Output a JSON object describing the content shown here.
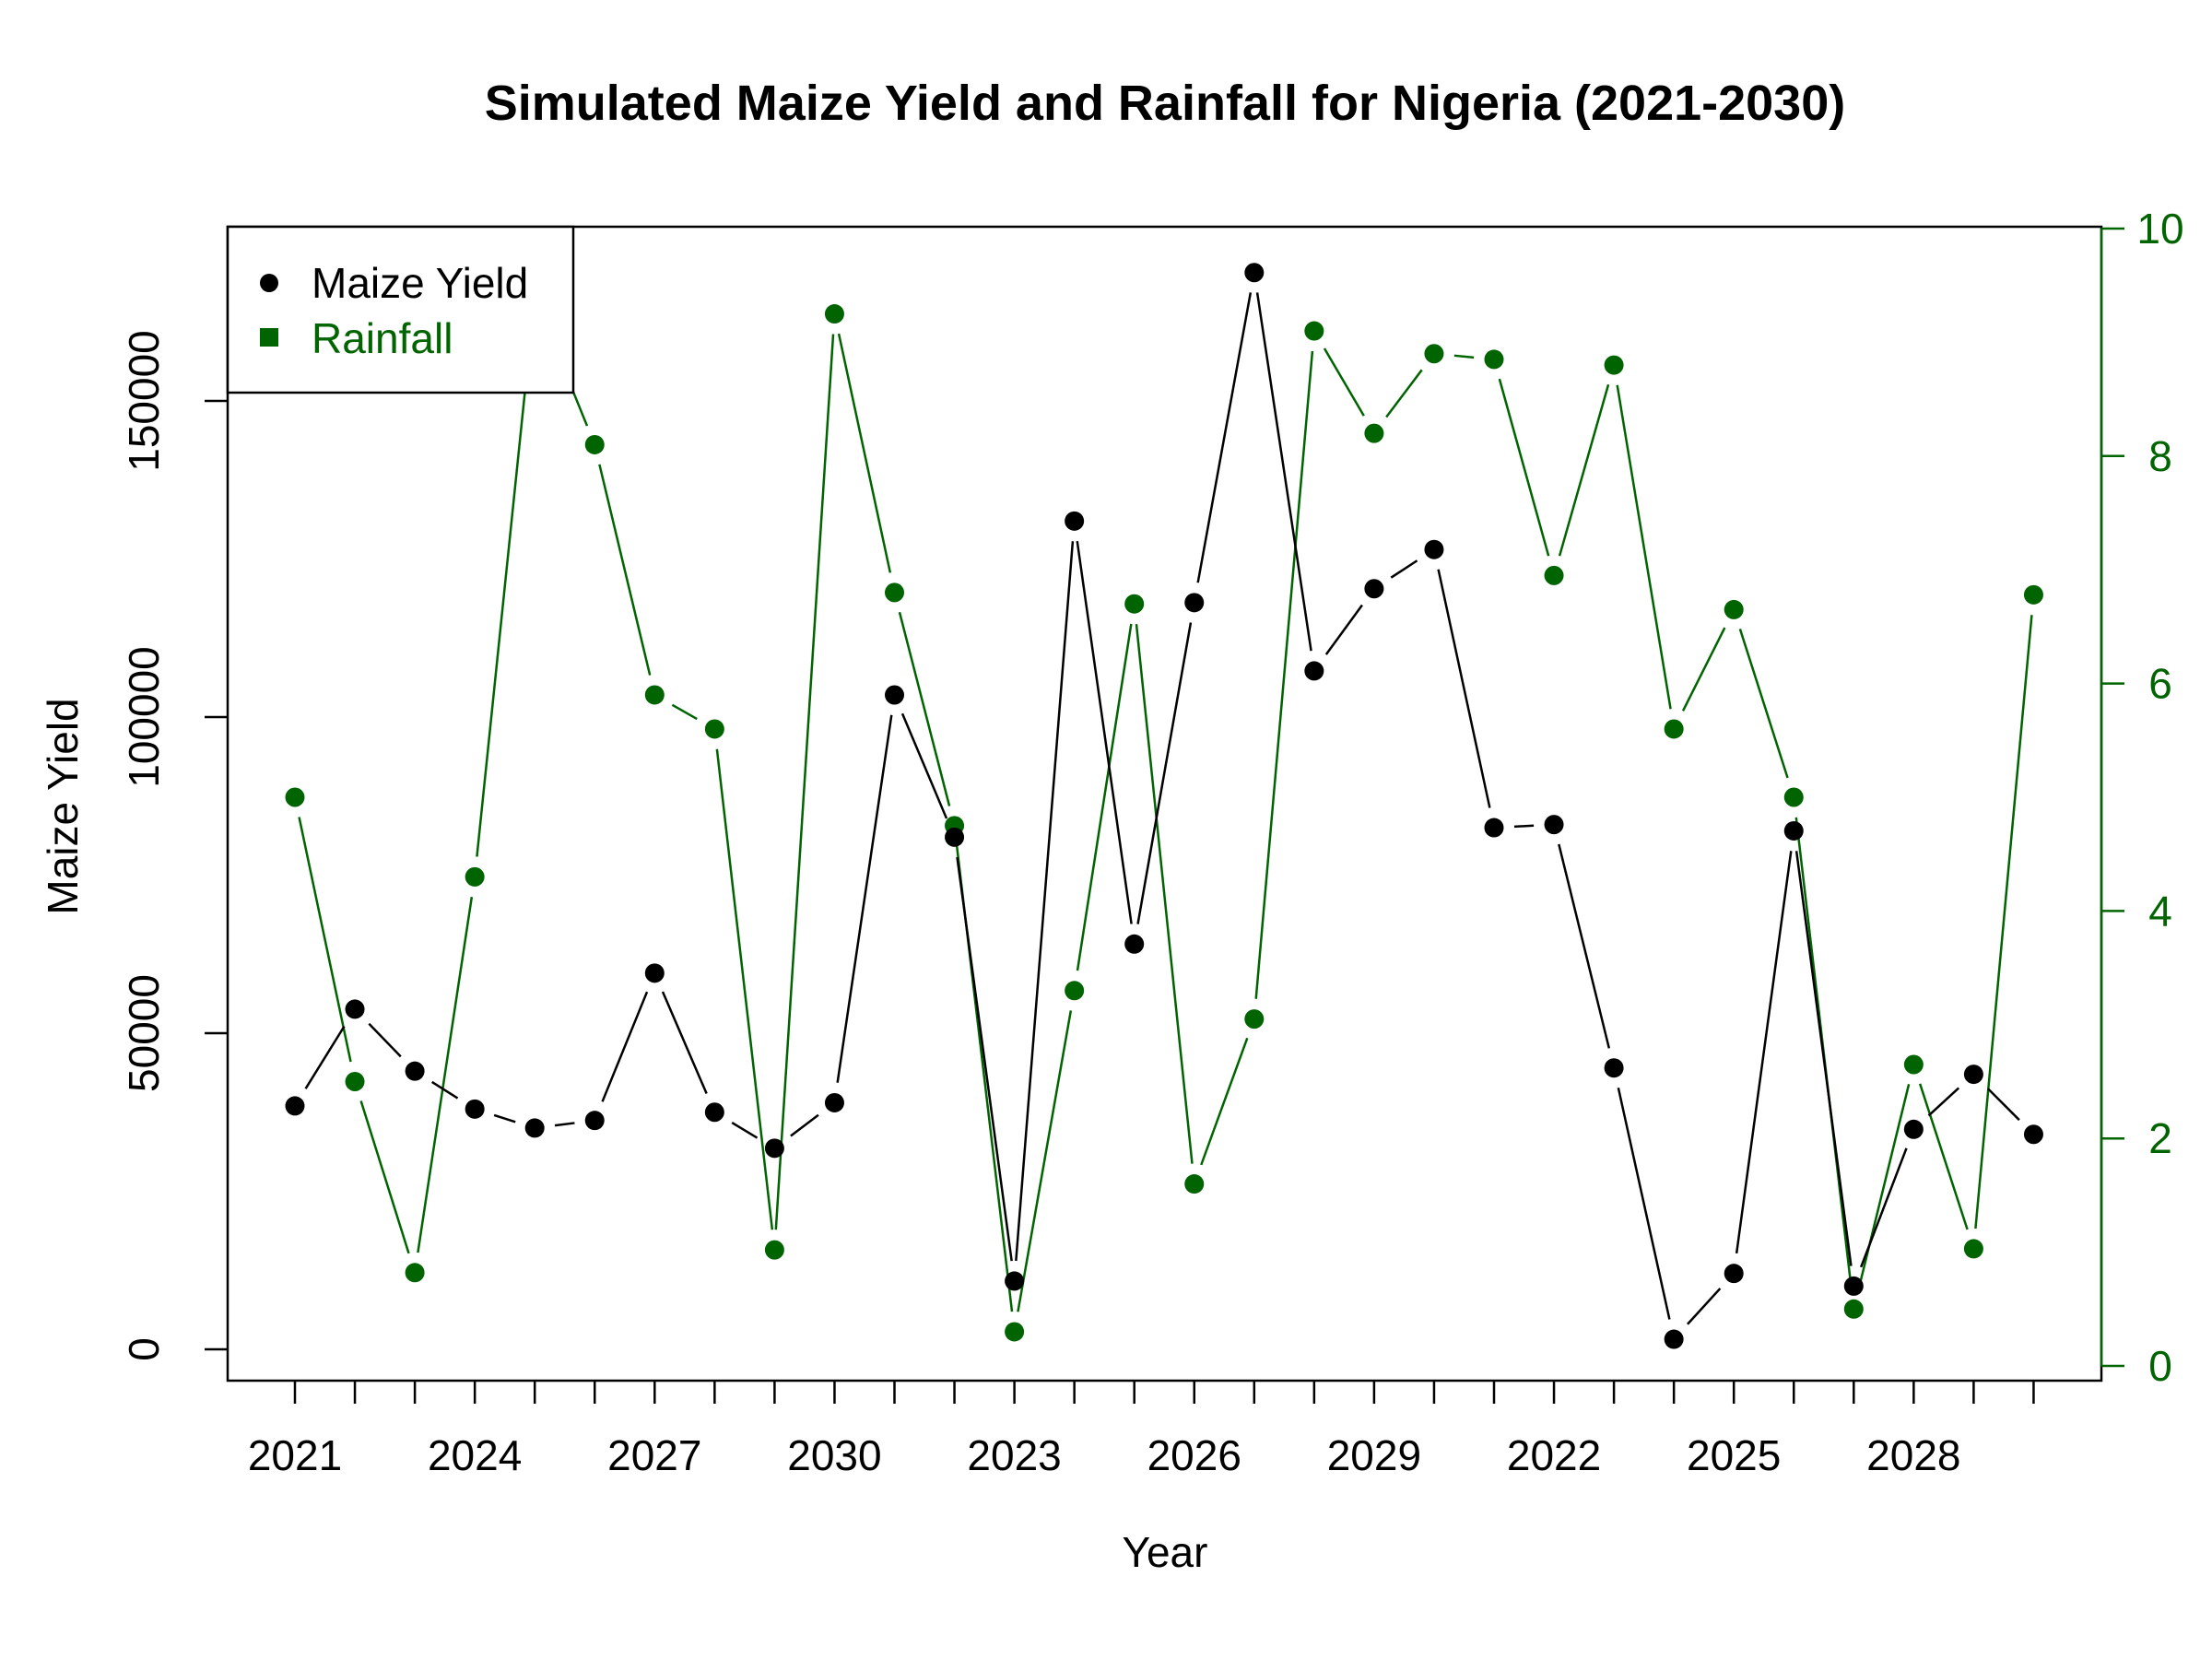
{
  "chart_data": {
    "type": "line",
    "title": "Simulated Maize Yield and Rainfall for Nigeria (2021-2030)",
    "xlabel": "Year",
    "ylabel": "Maize Yield",
    "x_tick_labels": [
      "2021",
      "2024",
      "2027",
      "2030",
      "2023",
      "2026",
      "2029",
      "2022",
      "2025",
      "2028"
    ],
    "x_categories": [
      "2021",
      "2022",
      "2023",
      "2024",
      "2025",
      "2026",
      "2027",
      "2028",
      "2029",
      "2030",
      "2021",
      "2022",
      "2023",
      "2024",
      "2025",
      "2026",
      "2027",
      "2028",
      "2029",
      "2030",
      "2021",
      "2022",
      "2023",
      "2024",
      "2025",
      "2026",
      "2027",
      "2028",
      "2029",
      "2030"
    ],
    "y_ticks_left": [
      "0",
      "50000",
      "100000",
      "150000"
    ],
    "y_ticks_right": [
      "0",
      "2",
      "4",
      "6",
      "8",
      "10"
    ],
    "ylim_left": [
      0,
      171000
    ],
    "ylim_right": [
      0,
      10
    ],
    "legend": {
      "position": "top-left",
      "entries": [
        "Maize Yield",
        "Rainfall"
      ]
    },
    "colors": {
      "maize": "#000000",
      "rainfall": "#006400"
    },
    "series": [
      {
        "name": "Maize Yield",
        "axis": "left",
        "values": [
          38500,
          53800,
          44000,
          38000,
          35000,
          36200,
          59500,
          37500,
          31800,
          39000,
          103500,
          81000,
          10800,
          131000,
          64100,
          118100,
          170300,
          107300,
          120300,
          126500,
          82500,
          83000,
          44500,
          1600,
          12000,
          82000,
          10000,
          34800,
          43500,
          34000
        ]
      },
      {
        "name": "Rainfall",
        "axis": "right",
        "values": [
          5.0,
          2.5,
          0.82,
          4.3,
          9.4,
          8.1,
          5.9,
          5.6,
          1.02,
          9.25,
          6.8,
          4.75,
          0.3,
          3.3,
          6.7,
          1.6,
          3.05,
          9.1,
          8.2,
          8.9,
          8.85,
          6.95,
          8.8,
          5.6,
          6.65,
          5.0,
          0.5,
          2.65,
          1.03,
          6.78
        ]
      }
    ]
  }
}
